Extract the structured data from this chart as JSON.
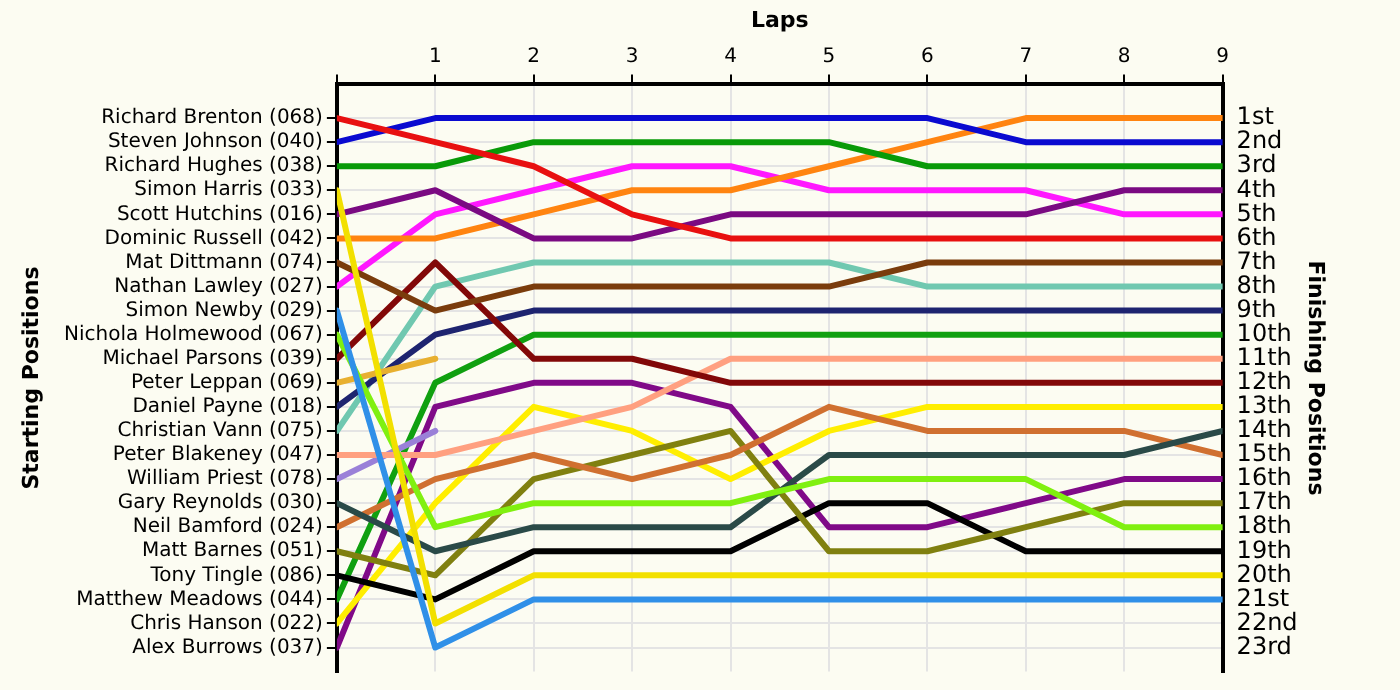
{
  "chart_data": {
    "type": "line",
    "xlabel": "Laps",
    "y2label": "Finishing Positions",
    "annotations": [
      "Starting Positions"
    ],
    "x": [
      0,
      1,
      2,
      3,
      4,
      5,
      6,
      7,
      8,
      9
    ],
    "xlim": [
      0,
      9
    ],
    "xticks": [
      {
        "value": 0,
        "label": null
      },
      1,
      2,
      3,
      4,
      5,
      6,
      7,
      8,
      9
    ],
    "y_categories": [
      "Richard Brenton (068)",
      "Steven Johnson (040)",
      "Richard Hughes (038)",
      "Simon Harris (033)",
      "Scott Hutchins (016)",
      "Dominic Russell (042)",
      "Mat Dittmann (074)",
      "Nathan Lawley (027)",
      "Simon Newby (029)",
      "Nichola Holmewood (067)",
      "Michael Parsons (039)",
      "Peter Leppan (069)",
      "Daniel Payne (018)",
      "Christian Vann (075)",
      "Peter Blakeney (047)",
      "William Priest (078)",
      "Gary Reynolds (030)",
      "Neil Bamford (024)",
      "Matt Barnes (051)",
      "Tony Tingle (086)",
      "Matthew Meadows (044)",
      "Chris Hanson (022)",
      "Alex Burrows (037)"
    ],
    "y2lim": [
      24,
      -0.4
    ],
    "y2ticks": [
      {
        "value": 1,
        "label": "1st"
      },
      {
        "value": 2,
        "label": "2nd"
      },
      {
        "value": 3,
        "label": "3rd"
      },
      {
        "value": 4,
        "label": "4th"
      },
      {
        "value": 5,
        "label": "5th"
      },
      {
        "value": 6,
        "label": "6th"
      },
      {
        "value": 7,
        "label": "7th"
      },
      {
        "value": 8,
        "label": "8th"
      },
      {
        "value": 9,
        "label": "9th"
      },
      {
        "value": 10,
        "label": "10th"
      },
      {
        "value": 11,
        "label": "11th"
      },
      {
        "value": 12,
        "label": "12th"
      },
      {
        "value": 13,
        "label": "13th"
      },
      {
        "value": 14,
        "label": "14th"
      },
      {
        "value": 15,
        "label": "15th"
      },
      {
        "value": 16,
        "label": "16th"
      },
      {
        "value": 17,
        "label": "17th"
      },
      {
        "value": 18,
        "label": "18th"
      },
      {
        "value": 19,
        "label": "19th"
      },
      {
        "value": 20,
        "label": "20th"
      },
      {
        "value": 21,
        "label": "21st"
      },
      {
        "value": 22,
        "label": "22nd"
      },
      {
        "value": 23,
        "label": "23rd"
      }
    ],
    "grid": true,
    "legend": false,
    "marker": "none",
    "line_style": "solid",
    "series": [
      {
        "axis": "y2",
        "color": "#e81010",
        "values": [
          1,
          2,
          3,
          5,
          6,
          6,
          6,
          6,
          6,
          6
        ]
      },
      {
        "axis": "y2",
        "color": "#0a0ad0",
        "values": [
          2,
          1,
          1,
          1,
          1,
          1,
          1,
          2,
          2,
          2
        ]
      },
      {
        "axis": "y2",
        "color": "#089a08",
        "values": [
          3,
          3,
          2,
          2,
          2,
          2,
          3,
          3,
          3,
          3
        ]
      },
      {
        "axis": "y2",
        "color": "#f2e000",
        "values": [
          4,
          22,
          20,
          20,
          20,
          20,
          20,
          20,
          20,
          20
        ]
      },
      {
        "axis": "y2",
        "color": "#7a0a82",
        "values": [
          5,
          4,
          6,
          6,
          5,
          5,
          5,
          5,
          4,
          4
        ]
      },
      {
        "axis": "y2",
        "color": "#ff8410",
        "values": [
          6,
          6,
          5,
          4,
          4,
          3,
          2,
          1,
          1,
          1
        ]
      },
      {
        "axis": "y2",
        "color": "#7a3c0c",
        "values": [
          7,
          9,
          8,
          8,
          8,
          8,
          7,
          7,
          7,
          7
        ]
      },
      {
        "axis": "y2",
        "color": "#ff18ff",
        "values": [
          8,
          5,
          4,
          3,
          3,
          4,
          4,
          4,
          5,
          5
        ]
      },
      {
        "axis": "y2",
        "color": "#3090e8",
        "values": [
          9,
          23,
          21,
          21,
          21,
          21,
          21,
          21,
          21,
          21
        ]
      },
      {
        "axis": "y2",
        "color": "#80f010",
        "values": [
          10,
          18,
          17,
          17,
          17,
          16,
          16,
          16,
          18,
          18
        ]
      },
      {
        "axis": "y2",
        "color": "#820808",
        "values": [
          11,
          7,
          11,
          11,
          12,
          12,
          12,
          12,
          12,
          12
        ]
      },
      {
        "axis": "y2",
        "color": "#e8b030",
        "values": [
          12,
          11,
          null,
          null,
          null,
          null,
          null,
          null,
          null,
          null
        ]
      },
      {
        "axis": "y2",
        "color": "#1e2470",
        "values": [
          13,
          10,
          9,
          9,
          9,
          9,
          9,
          9,
          9,
          9
        ]
      },
      {
        "axis": "y2",
        "color": "#70c8b0",
        "values": [
          14,
          8,
          7,
          7,
          7,
          7,
          8,
          8,
          8,
          8
        ]
      },
      {
        "axis": "y2",
        "color": "#ffa080",
        "values": [
          15,
          15,
          14,
          13,
          11,
          11,
          11,
          11,
          11,
          11
        ]
      },
      {
        "axis": "y2",
        "color": "#9a80d8",
        "values": [
          16,
          14,
          null,
          null,
          null,
          null,
          null,
          null,
          null,
          null
        ]
      },
      {
        "axis": "y2",
        "color": "#2a4a48",
        "values": [
          17,
          19,
          18,
          18,
          18,
          15,
          15,
          15,
          15,
          14
        ]
      },
      {
        "axis": "y2",
        "color": "#d07030",
        "values": [
          18,
          16,
          15,
          16,
          15,
          13,
          14,
          14,
          14,
          15
        ]
      },
      {
        "axis": "y2",
        "color": "#808010",
        "values": [
          19,
          20,
          16,
          15,
          14,
          19,
          19,
          18,
          17,
          17
        ]
      },
      {
        "axis": "y2",
        "color": "#000000",
        "values": [
          20,
          21,
          19,
          19,
          19,
          17,
          17,
          19,
          19,
          19
        ]
      },
      {
        "axis": "y2",
        "color": "#10a010",
        "values": [
          21,
          12,
          10,
          10,
          10,
          10,
          10,
          10,
          10,
          10
        ]
      },
      {
        "axis": "y2",
        "color": "#ffee00",
        "values": [
          22,
          17,
          13,
          14,
          16,
          14,
          13,
          13,
          13,
          13
        ]
      },
      {
        "axis": "y2",
        "color": "#800a88",
        "values": [
          23,
          13,
          12,
          12,
          13,
          18,
          18,
          17,
          16,
          16
        ]
      }
    ]
  }
}
